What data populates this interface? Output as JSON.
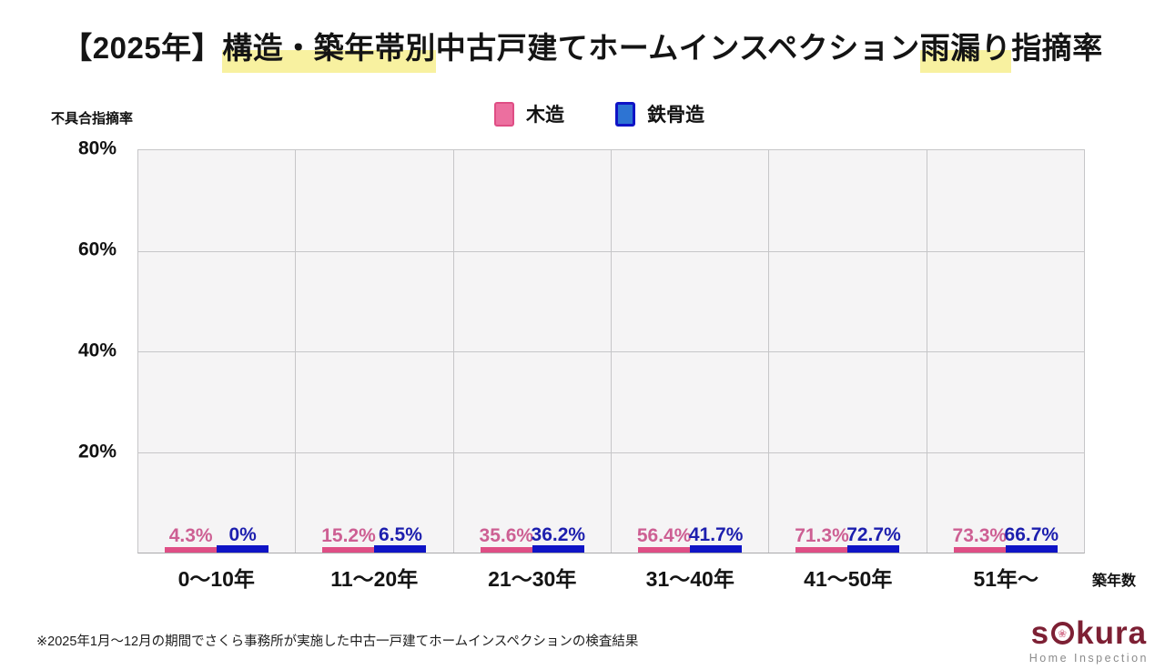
{
  "title": {
    "full": "【2025年】構造・築年帯別中古戸建てホームインスペクション雨漏り指摘率",
    "parts": [
      {
        "text": "【2025年】",
        "highlight": false
      },
      {
        "text": "構造・築年帯別",
        "highlight": true
      },
      {
        "text": "中古戸建てホームインスペクション",
        "highlight": false
      },
      {
        "text": "雨漏り",
        "highlight": true
      },
      {
        "text": "指摘率",
        "highlight": false
      }
    ],
    "highlight_color": "#f8f1a0"
  },
  "legend": [
    {
      "label": "木造",
      "fill": "#ec6f9f",
      "border": "#df4e85"
    },
    {
      "label": "鉄骨造",
      "fill": "#2d74d3",
      "border": "#0f14c6"
    }
  ],
  "y_axis": {
    "label": "不具合指摘率",
    "ticks": [
      {
        "label": "80%",
        "value": 80
      },
      {
        "label": "60%",
        "value": 60
      },
      {
        "label": "40%",
        "value": 40
      },
      {
        "label": "20%",
        "value": 20
      }
    ],
    "max": 80
  },
  "x_axis": {
    "label": "築年数"
  },
  "chart_data": {
    "type": "bar",
    "title": "【2025年】構造・築年帯別中古戸建てホームインスペクション雨漏り指摘率",
    "xlabel": "築年数",
    "ylabel": "不具合指摘率",
    "ylim": [
      0,
      80
    ],
    "grid": true,
    "legend_position": "top",
    "categories": [
      "0〜10年",
      "11〜20年",
      "21〜30年",
      "31〜40年",
      "41〜50年",
      "51年〜"
    ],
    "series": [
      {
        "name": "木造",
        "values": [
          4.3,
          15.2,
          35.6,
          56.4,
          71.3,
          73.3
        ],
        "labels": [
          "4.3%",
          "15.2%",
          "35.6%",
          "56.4%",
          "71.3%",
          "73.3%"
        ],
        "fill": "#ec6f9f",
        "border": "#df4e85",
        "label_color": "#cd5f93"
      },
      {
        "name": "鉄骨造",
        "values": [
          0,
          6.5,
          36.2,
          41.7,
          72.7,
          66.7
        ],
        "labels": [
          "0%",
          "6.5%",
          "36.2%",
          "41.7%",
          "72.7%",
          "66.7%"
        ],
        "fill": "#2d74d3",
        "border": "#0f14c6",
        "label_color": "#1d1fae"
      }
    ]
  },
  "footnote": "※2025年1月〜12月の期間でさくら事務所が実施した中古一戸建てホームインスペクションの検査結果",
  "logo": {
    "text_before": "s",
    "text_after": "kura",
    "flower_icon": "sakura-flower",
    "tagline": "Home Inspection"
  }
}
